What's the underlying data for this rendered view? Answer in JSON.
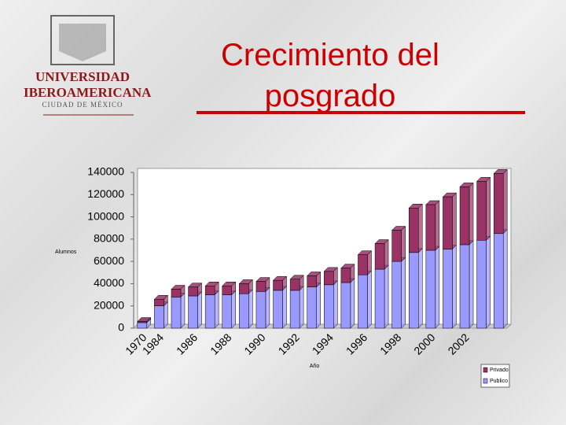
{
  "logo": {
    "name": "UNIVERSIDAD IBEROAMERICANA",
    "city": "CIUDAD DE MÉXICO"
  },
  "chart_data": {
    "type": "stacked-bar",
    "title": "Crecimiento del posgrado",
    "x_label": "Año",
    "y_label": "Alumnos",
    "categories": [
      "1970",
      "1984",
      null,
      "1986",
      null,
      "1988",
      null,
      "1990",
      null,
      "1992",
      null,
      "1994",
      null,
      "1996",
      null,
      "1998",
      null,
      "2000",
      null,
      "2002",
      null,
      null
    ],
    "series": [
      {
        "name": "Publico",
        "color": "#9999ff",
        "values": [
          5000,
          20000,
          28000,
          29000,
          30000,
          30000,
          31000,
          33000,
          34000,
          34000,
          37000,
          39000,
          41000,
          48000,
          53000,
          60000,
          68000,
          70000,
          71000,
          75000,
          79000,
          85000
        ]
      },
      {
        "name": "Privado",
        "color": "#993366",
        "values": [
          1000,
          6000,
          7000,
          8000,
          8000,
          8000,
          9000,
          9000,
          9000,
          10000,
          10000,
          12000,
          13000,
          18000,
          23000,
          28000,
          40000,
          41000,
          47000,
          52000,
          53000,
          54000
        ]
      }
    ],
    "ylim": [
      0,
      140000
    ],
    "yticks": [
      0,
      20000,
      40000,
      60000,
      80000,
      100000,
      120000,
      140000
    ],
    "legend": "bottom-right"
  }
}
